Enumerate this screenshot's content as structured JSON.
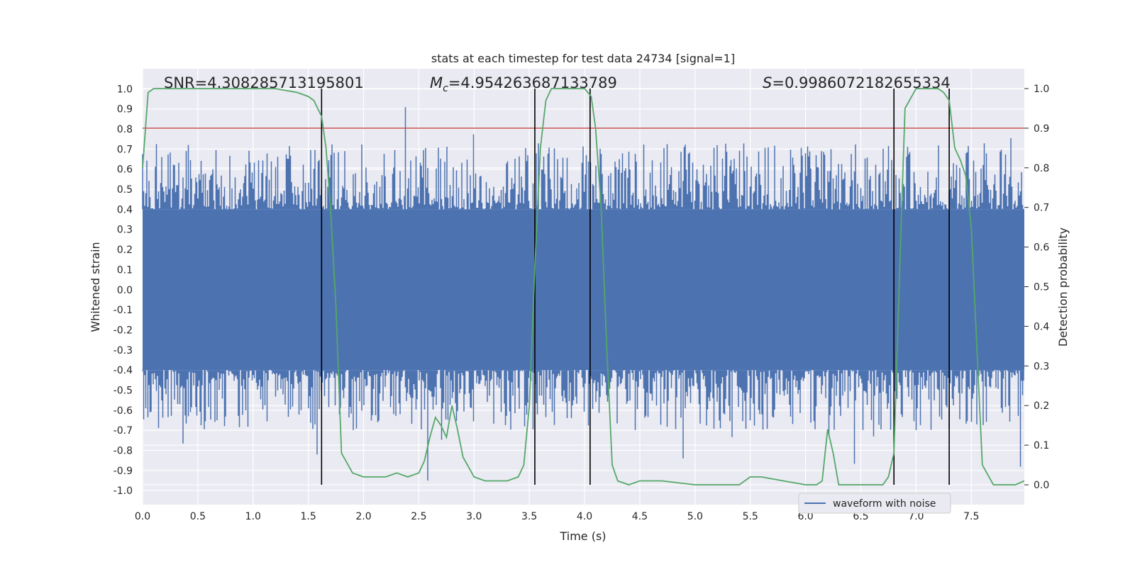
{
  "chart_data": {
    "type": "line",
    "title": "stats at each timestep for test data 24734 [signal=1]",
    "xlabel": "Time (s)",
    "ylabel_left": "Whitened strain",
    "ylabel_right": "Detection probability",
    "xlim": [
      0.0,
      7.98
    ],
    "ylim_left": [
      -1.07,
      1.1
    ],
    "ylim_right": [
      -0.05,
      1.05
    ],
    "x_ticks": [
      "0.0",
      "0.5",
      "1.0",
      "1.5",
      "2.0",
      "2.5",
      "3.0",
      "3.5",
      "4.0",
      "4.5",
      "5.0",
      "5.5",
      "6.0",
      "6.5",
      "7.0",
      "7.5"
    ],
    "y_left_ticks": [
      "1.0",
      "0.9",
      "0.8",
      "0.7",
      "0.6",
      "0.5",
      "0.4",
      "0.3",
      "0.2",
      "0.1",
      "0.0",
      "-0.1",
      "-0.2",
      "-0.3",
      "-0.4",
      "-0.5",
      "-0.6",
      "-0.7",
      "-0.8",
      "-0.9",
      "-1.0"
    ],
    "y_right_ticks": [
      "1.0",
      "0.9",
      "0.8",
      "0.7",
      "0.6",
      "0.5",
      "0.4",
      "0.3",
      "0.2",
      "0.1",
      "0.0"
    ],
    "annotations": {
      "snr": "SNR=4.308285713195801",
      "mc_symbol": "M",
      "mc_sub": "c",
      "mc_value": "=4.954263687133789",
      "s_symbol": "S",
      "s_value": "=0.9986072182655334"
    },
    "threshold": 0.9,
    "detection_boundaries": [
      1.62,
      3.55,
      4.05,
      6.8,
      7.3
    ],
    "legend": {
      "entries": [
        "waveform with noise"
      ],
      "location": "lower right"
    },
    "series": [
      {
        "name": "waveform with noise",
        "axis": "left",
        "kind": "noise",
        "seed": 24734,
        "bulk_amplitude": 0.4,
        "peak_amplitude": 1.0,
        "min_amplitude": -0.95
      },
      {
        "name": "detection probability",
        "axis": "right",
        "x": [
          0.0,
          0.05,
          0.1,
          0.2,
          0.4,
          0.8,
          1.2,
          1.4,
          1.5,
          1.55,
          1.62,
          1.66,
          1.7,
          1.75,
          1.8,
          1.9,
          2.0,
          2.1,
          2.2,
          2.3,
          2.4,
          2.5,
          2.55,
          2.6,
          2.65,
          2.7,
          2.75,
          2.8,
          2.85,
          2.9,
          3.0,
          3.1,
          3.2,
          3.3,
          3.4,
          3.45,
          3.5,
          3.55,
          3.6,
          3.65,
          3.7,
          3.8,
          4.0,
          4.06,
          4.1,
          4.15,
          4.2,
          4.25,
          4.3,
          4.4,
          4.5,
          4.7,
          5.0,
          5.2,
          5.4,
          5.5,
          5.6,
          5.8,
          6.0,
          6.1,
          6.15,
          6.2,
          6.25,
          6.3,
          6.4,
          6.5,
          6.7,
          6.75,
          6.8,
          6.83,
          6.87,
          6.9,
          7.0,
          7.2,
          7.25,
          7.3,
          7.35,
          7.4,
          7.45,
          7.5,
          7.6,
          7.7,
          7.9,
          7.98
        ],
        "values": [
          0.8,
          0.99,
          1.0,
          1.0,
          1.0,
          1.0,
          1.0,
          0.99,
          0.98,
          0.97,
          0.93,
          0.85,
          0.7,
          0.45,
          0.08,
          0.03,
          0.02,
          0.02,
          0.02,
          0.03,
          0.02,
          0.03,
          0.06,
          0.12,
          0.17,
          0.15,
          0.12,
          0.2,
          0.14,
          0.07,
          0.02,
          0.01,
          0.01,
          0.01,
          0.02,
          0.05,
          0.2,
          0.55,
          0.85,
          0.97,
          1.0,
          1.0,
          1.0,
          0.98,
          0.9,
          0.7,
          0.35,
          0.05,
          0.01,
          0.0,
          0.01,
          0.01,
          0.0,
          0.0,
          0.0,
          0.02,
          0.02,
          0.01,
          0.0,
          0.0,
          0.01,
          0.14,
          0.08,
          0.0,
          0.0,
          0.0,
          0.0,
          0.02,
          0.08,
          0.35,
          0.7,
          0.95,
          1.0,
          1.0,
          0.99,
          0.97,
          0.85,
          0.82,
          0.78,
          0.65,
          0.05,
          0.0,
          0.0,
          0.01
        ]
      }
    ]
  }
}
